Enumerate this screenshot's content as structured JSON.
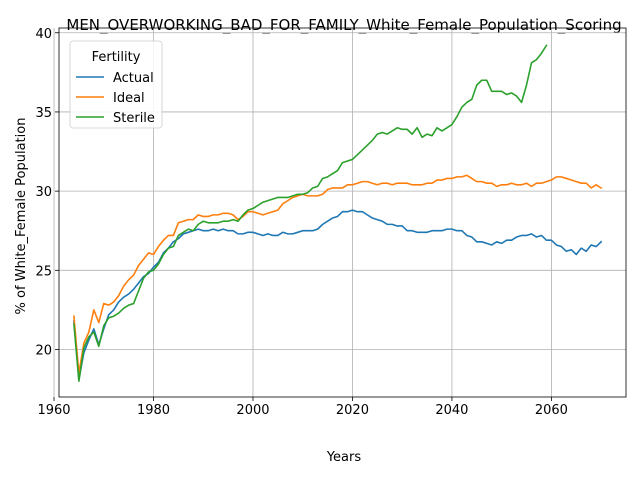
{
  "chart_data": {
    "type": "line",
    "title": "MEN_OVERWORKING_BAD_FOR_FAMILY_White_Female_Population_Scoring",
    "xlabel": "Years",
    "ylabel": "% of White_Female Population",
    "xlim": [
      1961,
      2075
    ],
    "ylim": [
      17,
      40.3
    ],
    "x_ticks": [
      1960,
      1980,
      2000,
      2020,
      2040,
      2060
    ],
    "y_ticks": [
      20,
      25,
      30,
      35,
      40
    ],
    "grid": true,
    "legend": {
      "title": "Fertility",
      "position": "top-left"
    },
    "series": [
      {
        "name": "Actual",
        "color": "#1f77b4",
        "x": [
          1964,
          1965,
          1966,
          1967,
          1968,
          1969,
          1970,
          1971,
          1972,
          1973,
          1974,
          1975,
          1976,
          1977,
          1978,
          1979,
          1980,
          1981,
          1982,
          1983,
          1984,
          1985,
          1986,
          1987,
          1988,
          1989,
          1990,
          1991,
          1992,
          1993,
          1994,
          1995,
          1996,
          1997,
          1998,
          1999,
          2000,
          2001,
          2002,
          2003,
          2004,
          2005,
          2006,
          2007,
          2008,
          2009,
          2010,
          2011,
          2012,
          2013,
          2014,
          2015,
          2016,
          2017,
          2018,
          2019,
          2020,
          2021,
          2022,
          2023,
          2024,
          2025,
          2026,
          2027,
          2028,
          2029,
          2030,
          2031,
          2032,
          2033,
          2034,
          2035,
          2036,
          2037,
          2038,
          2039,
          2040,
          2041,
          2042,
          2043,
          2044,
          2045,
          2046,
          2047,
          2048,
          2049,
          2050,
          2051,
          2052,
          2053,
          2054,
          2055,
          2056,
          2057,
          2058,
          2059,
          2060,
          2061,
          2062,
          2063,
          2064,
          2065,
          2066,
          2067,
          2068,
          2069,
          2070
        ],
        "values": [
          21.8,
          18.1,
          19.8,
          20.6,
          21.3,
          20.3,
          21.3,
          22.2,
          22.5,
          23.0,
          23.3,
          23.5,
          23.8,
          24.2,
          24.6,
          24.8,
          25.2,
          25.5,
          26.1,
          26.4,
          26.8,
          27.0,
          27.3,
          27.4,
          27.5,
          27.6,
          27.5,
          27.5,
          27.6,
          27.5,
          27.6,
          27.5,
          27.5,
          27.3,
          27.3,
          27.4,
          27.4,
          27.3,
          27.2,
          27.3,
          27.2,
          27.2,
          27.4,
          27.3,
          27.3,
          27.4,
          27.5,
          27.5,
          27.5,
          27.6,
          27.9,
          28.1,
          28.3,
          28.4,
          28.7,
          28.7,
          28.8,
          28.7,
          28.7,
          28.5,
          28.3,
          28.2,
          28.1,
          27.9,
          27.9,
          27.8,
          27.8,
          27.5,
          27.5,
          27.4,
          27.4,
          27.4,
          27.5,
          27.5,
          27.5,
          27.6,
          27.6,
          27.5,
          27.5,
          27.2,
          27.1,
          26.8,
          26.8,
          26.7,
          26.6,
          26.8,
          26.7,
          26.9,
          26.9,
          27.1,
          27.2,
          27.2,
          27.3,
          27.1,
          27.2,
          26.9,
          26.9,
          26.6,
          26.5,
          26.2,
          26.3,
          26.0,
          26.4,
          26.2,
          26.6,
          26.5,
          26.8
        ]
      },
      {
        "name": "Ideal",
        "color": "#ff7f0e",
        "x": [
          1964,
          1965,
          1966,
          1967,
          1968,
          1969,
          1970,
          1971,
          1972,
          1973,
          1974,
          1975,
          1976,
          1977,
          1978,
          1979,
          1980,
          1981,
          1982,
          1983,
          1984,
          1985,
          1986,
          1987,
          1988,
          1989,
          1990,
          1991,
          1992,
          1993,
          1994,
          1995,
          1996,
          1997,
          1998,
          1999,
          2000,
          2001,
          2002,
          2003,
          2004,
          2005,
          2006,
          2007,
          2008,
          2009,
          2010,
          2011,
          2012,
          2013,
          2014,
          2015,
          2016,
          2017,
          2018,
          2019,
          2020,
          2021,
          2022,
          2023,
          2024,
          2025,
          2026,
          2027,
          2028,
          2029,
          2030,
          2031,
          2032,
          2033,
          2034,
          2035,
          2036,
          2037,
          2038,
          2039,
          2040,
          2041,
          2042,
          2043,
          2044,
          2045,
          2046,
          2047,
          2048,
          2049,
          2050,
          2051,
          2052,
          2053,
          2054,
          2055,
          2056,
          2057,
          2058,
          2059,
          2060,
          2061,
          2062,
          2063,
          2064,
          2065,
          2066,
          2067,
          2068,
          2069,
          2070
        ],
        "values": [
          22.1,
          18.5,
          20.4,
          21.1,
          22.5,
          21.7,
          22.9,
          22.8,
          23.0,
          23.4,
          24.0,
          24.4,
          24.7,
          25.3,
          25.7,
          26.1,
          26.0,
          26.5,
          26.9,
          27.2,
          27.2,
          28.0,
          28.1,
          28.2,
          28.2,
          28.5,
          28.4,
          28.4,
          28.5,
          28.5,
          28.6,
          28.6,
          28.5,
          28.2,
          28.4,
          28.7,
          28.7,
          28.6,
          28.5,
          28.6,
          28.7,
          28.8,
          29.2,
          29.4,
          29.6,
          29.7,
          29.8,
          29.7,
          29.7,
          29.7,
          29.8,
          30.1,
          30.2,
          30.2,
          30.2,
          30.4,
          30.4,
          30.5,
          30.6,
          30.6,
          30.5,
          30.4,
          30.5,
          30.5,
          30.4,
          30.5,
          30.5,
          30.5,
          30.4,
          30.4,
          30.4,
          30.5,
          30.5,
          30.7,
          30.7,
          30.8,
          30.8,
          30.9,
          30.9,
          31.0,
          30.8,
          30.6,
          30.6,
          30.5,
          30.5,
          30.3,
          30.4,
          30.4,
          30.5,
          30.4,
          30.4,
          30.5,
          30.3,
          30.5,
          30.5,
          30.6,
          30.7,
          30.9,
          30.9,
          30.8,
          30.7,
          30.6,
          30.5,
          30.5,
          30.2,
          30.4,
          30.2
        ]
      },
      {
        "name": "Sterile",
        "color": "#2ca02c",
        "x": [
          1964,
          1965,
          1966,
          1967,
          1968,
          1969,
          1970,
          1971,
          1972,
          1973,
          1974,
          1975,
          1976,
          1977,
          1978,
          1979,
          1980,
          1981,
          1982,
          1983,
          1984,
          1985,
          1986,
          1987,
          1988,
          1989,
          1990,
          1991,
          1992,
          1993,
          1994,
          1995,
          1996,
          1997,
          1998,
          1999,
          2000,
          2001,
          2002,
          2003,
          2004,
          2005,
          2006,
          2007,
          2008,
          2009,
          2010,
          2011,
          2012,
          2013,
          2014,
          2015,
          2016,
          2017,
          2018,
          2019,
          2020,
          2021,
          2022,
          2023,
          2024,
          2025,
          2026,
          2027,
          2028,
          2029,
          2030,
          2031,
          2032,
          2033,
          2034,
          2035,
          2036,
          2037,
          2038,
          2039,
          2040,
          2041,
          2042,
          2043,
          2044,
          2045,
          2046,
          2047,
          2048,
          2049,
          2050,
          2051,
          2052,
          2053,
          2054,
          2055,
          2056,
          2057,
          2058,
          2059
        ],
        "values": [
          21.6,
          18.0,
          20.1,
          20.8,
          21.1,
          20.2,
          21.5,
          22.0,
          22.1,
          22.3,
          22.6,
          22.8,
          22.9,
          23.7,
          24.5,
          24.9,
          25.0,
          25.4,
          26.0,
          26.4,
          26.5,
          27.2,
          27.4,
          27.6,
          27.5,
          27.9,
          28.1,
          28.0,
          28.0,
          28.0,
          28.1,
          28.1,
          28.2,
          28.1,
          28.5,
          28.8,
          28.9,
          29.1,
          29.3,
          29.4,
          29.5,
          29.6,
          29.6,
          29.6,
          29.7,
          29.8,
          29.8,
          29.9,
          30.2,
          30.3,
          30.8,
          30.9,
          31.1,
          31.3,
          31.8,
          31.9,
          32.0,
          32.3,
          32.6,
          32.9,
          33.2,
          33.6,
          33.7,
          33.6,
          33.8,
          34.0,
          33.9,
          33.9,
          33.6,
          34.0,
          33.4,
          33.6,
          33.5,
          34.0,
          33.8,
          34.0,
          34.2,
          34.7,
          35.3,
          35.6,
          35.8,
          36.7,
          37.0,
          37.0,
          36.3,
          36.3,
          36.3,
          36.1,
          36.2,
          36.0,
          35.6,
          36.7,
          38.1,
          38.3,
          38.7,
          39.2
        ]
      }
    ]
  }
}
